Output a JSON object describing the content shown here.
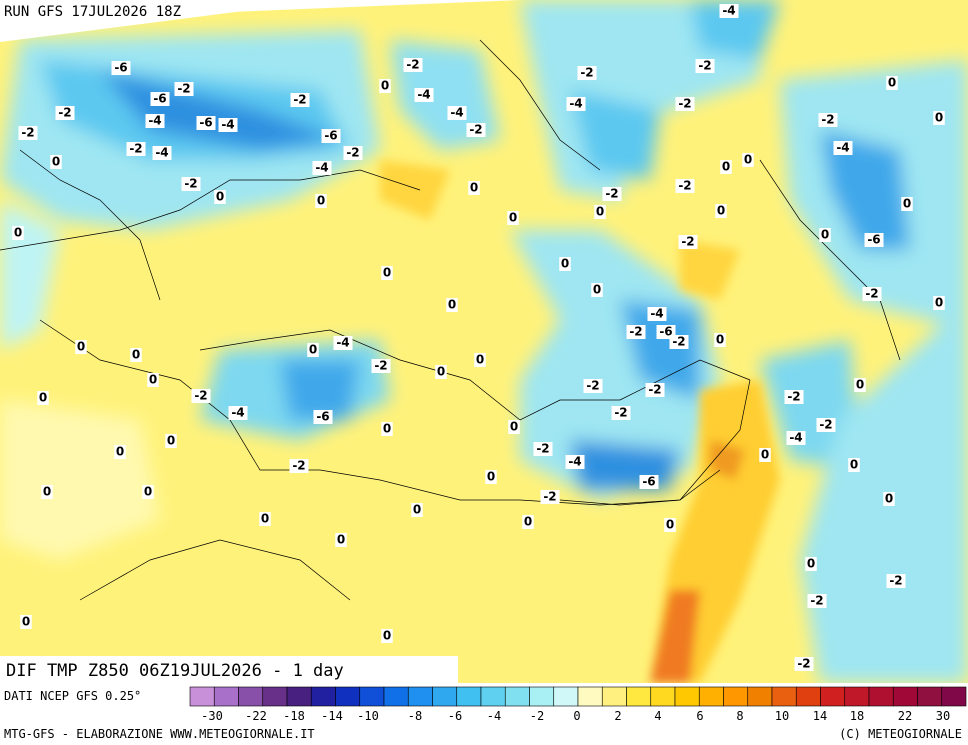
{
  "header": {
    "run": "RUN GFS 17JUL2026 18Z",
    "title": "DIF TMP Z850 06Z19JUL2026 - 1 day"
  },
  "footer": {
    "source": "DATI NCEP GFS 0.25°",
    "credit_left": "MTG-GFS - ELABORAZIONE WWW.METEOGIORNALE.IT",
    "credit_right": "(C) METEOGIORNALE"
  },
  "colorbar": {
    "colors": [
      "#c890d8",
      "#a870c8",
      "#8850a8",
      "#683088",
      "#482080",
      "#2020a0",
      "#1030c0",
      "#1050d8",
      "#1070e8",
      "#2090f0",
      "#30a8f0",
      "#40c0f0",
      "#60d0f0",
      "#80e0f0",
      "#a8f0f4",
      "#d0f8f8",
      "#fffbc0",
      "#fff080",
      "#ffe840",
      "#ffd820",
      "#ffc800",
      "#ffb000",
      "#ff9800",
      "#f08000",
      "#e86010",
      "#e04010",
      "#d02020",
      "#c01828",
      "#b01030",
      "#a00838",
      "#901040",
      "#800848"
    ],
    "labels": [
      -30,
      -22,
      -18,
      -14,
      -10,
      -8,
      -6,
      -4,
      -2,
      0,
      2,
      4,
      6,
      8,
      10,
      14,
      18,
      22,
      30
    ]
  },
  "map": {
    "contour_labels": [
      -6,
      -2,
      -6,
      -2,
      -4,
      -6,
      -4,
      -2,
      -4,
      -2,
      0,
      -2,
      0,
      -2,
      -6,
      -2,
      -4,
      0,
      -2,
      0,
      -4,
      -4,
      -2,
      0,
      0,
      -2,
      -4,
      -2,
      -2,
      -4,
      0,
      0,
      -2,
      -4,
      0,
      0,
      -2,
      -2,
      0,
      0,
      0,
      0,
      -6,
      -2,
      0,
      0,
      0,
      0,
      -2,
      0,
      -4,
      -2,
      -6,
      -2,
      0,
      0,
      0,
      0,
      0,
      0,
      -4,
      -2,
      0,
      0,
      -2,
      -2,
      -2,
      -2,
      -4,
      -6,
      0,
      0,
      0,
      -2,
      0,
      -4,
      -2,
      0,
      0,
      0,
      -2,
      -4,
      -6,
      -2,
      0,
      0,
      0,
      -2,
      0,
      0,
      0,
      0,
      0,
      0,
      0,
      -2,
      0,
      0,
      0,
      -2,
      -2
    ]
  }
}
